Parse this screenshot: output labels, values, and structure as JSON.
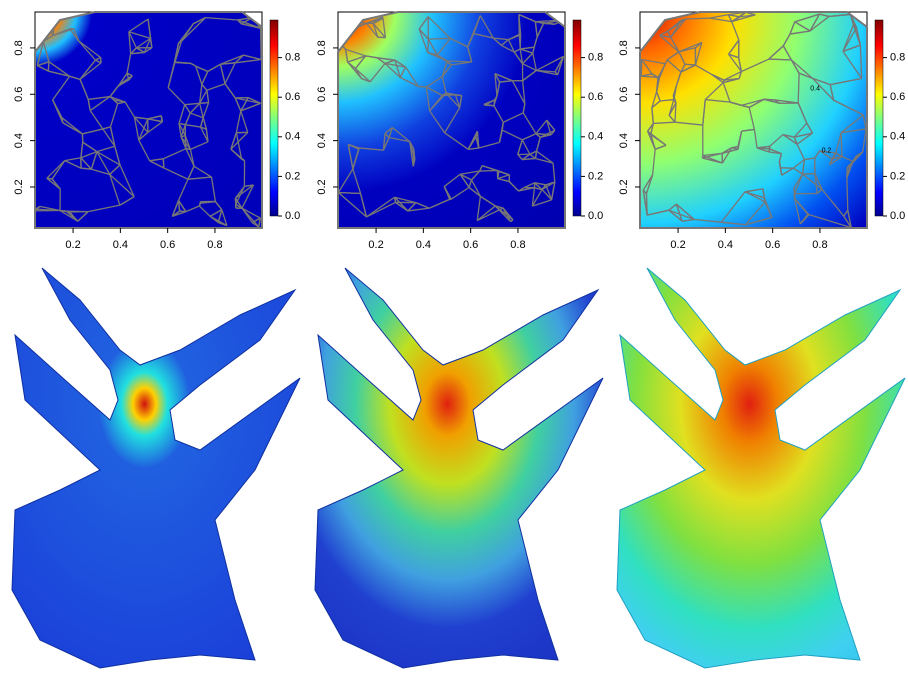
{
  "chart_data": [
    {
      "type": "heatmap",
      "xlim": [
        0.039,
        0.999
      ],
      "ylim": [
        0.023,
        0.955
      ],
      "xticks": [
        0.2,
        0.4,
        0.6,
        0.8
      ],
      "yticks": [
        0.2,
        0.4,
        0.6,
        0.8
      ],
      "clim": [
        0,
        0.99
      ],
      "cticks": [
        {
          "value": 0,
          "label": "0.0"
        },
        0.2,
        0.4,
        0.6,
        0.8
      ]
    },
    {
      "type": "heatmap",
      "xlim": [
        0.039,
        0.999
      ],
      "ylim": [
        0.023,
        0.955
      ],
      "xticks": [
        0.2,
        0.4,
        0.6,
        0.8
      ],
      "yticks": [
        0.2,
        0.4,
        0.6,
        0.8
      ],
      "clim": [
        0,
        0.99
      ],
      "cticks": [
        {
          "value": 0,
          "label": "0.0"
        },
        0.2,
        0.4,
        0.6,
        0.8
      ]
    },
    {
      "type": "heatmap",
      "xlim": [
        0.039,
        0.999
      ],
      "ylim": [
        0.023,
        0.955
      ],
      "xticks": [
        0.2,
        0.4,
        0.6,
        0.8
      ],
      "yticks": [
        0.2,
        0.4,
        0.6,
        0.8
      ],
      "clim": [
        0,
        0.99
      ],
      "cticks": [
        {
          "value": 0,
          "label": "0.0"
        },
        0.2,
        0.4,
        0.6,
        0.8
      ],
      "annotations": [
        "0.4",
        "0.2"
      ]
    }
  ]
}
